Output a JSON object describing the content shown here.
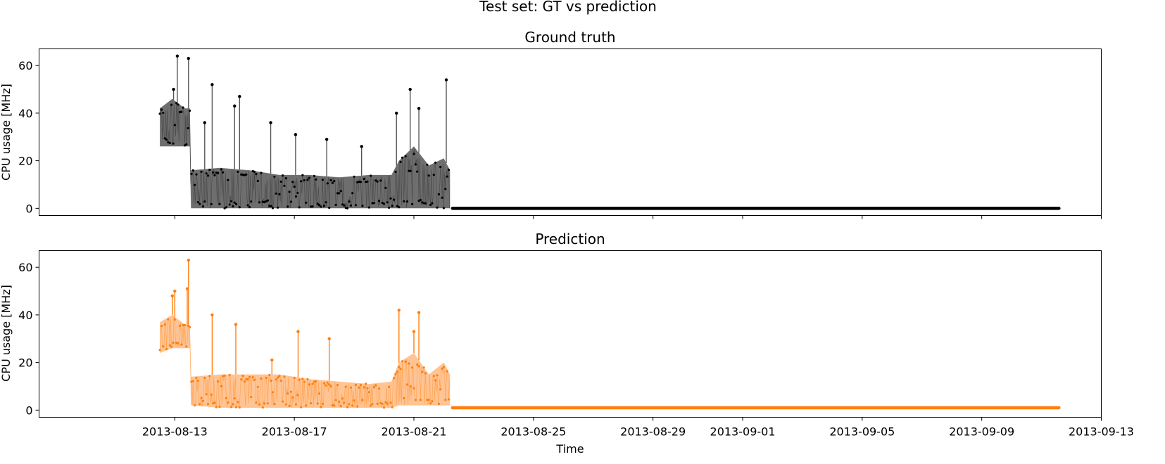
{
  "figure": {
    "suptitle": "Test set: GT vs prediction",
    "xlabel": "Time"
  },
  "chart_data": [
    {
      "type": "line",
      "title": "Ground truth",
      "ylabel": "CPU usage [MHz]",
      "xlabel": "",
      "x_type": "date",
      "xlim": [
        "2013-08-08T11:00",
        "2013-09-13T00:00"
      ],
      "ylim": [
        -3,
        67
      ],
      "yticks": [
        0,
        20,
        40,
        60
      ],
      "xticks": [
        "2013-08-13",
        "2013-08-17",
        "2013-08-21",
        "2013-08-25",
        "2013-08-29",
        "2013-09-01",
        "2013-09-05",
        "2013-09-09",
        "2013-09-13"
      ],
      "show_xtick_labels": false,
      "grid": false,
      "color": "#000000",
      "band_color": "#666666",
      "series": [
        {
          "band": [
            {
              "x": "2013-08-12T12:00",
              "low": 26,
              "high": 42
            },
            {
              "x": "2013-08-12T22:00",
              "low": 26,
              "high": 46
            },
            {
              "x": "2013-08-13T08:00",
              "low": 26,
              "high": 42
            },
            {
              "x": "2013-08-13T12:00",
              "low": 26,
              "high": 42
            },
            {
              "x": "2013-08-13T13:00",
              "low": 0,
              "high": 16
            },
            {
              "x": "2013-08-14T12:00",
              "low": 0,
              "high": 17
            },
            {
              "x": "2013-08-15T12:00",
              "low": 0,
              "high": 16
            },
            {
              "x": "2013-08-16T12:00",
              "low": 0,
              "high": 14
            },
            {
              "x": "2013-08-17T12:00",
              "low": 0,
              "high": 14
            },
            {
              "x": "2013-08-18T12:00",
              "low": 0,
              "high": 13
            },
            {
              "x": "2013-08-19T12:00",
              "low": 0,
              "high": 14
            },
            {
              "x": "2013-08-20T06:00",
              "low": 0,
              "high": 14
            },
            {
              "x": "2013-08-20T12:00",
              "low": 0,
              "high": 20
            },
            {
              "x": "2013-08-21T00:00",
              "low": 0,
              "high": 26
            },
            {
              "x": "2013-08-21T12:00",
              "low": 0,
              "high": 18
            },
            {
              "x": "2013-08-22T00:00",
              "low": 0,
              "high": 21
            },
            {
              "x": "2013-08-22T05:00",
              "low": 0,
              "high": 16
            }
          ],
          "spikes": [
            {
              "x": "2013-08-12T23:00",
              "value": 50
            },
            {
              "x": "2013-08-13T02:00",
              "value": 64
            },
            {
              "x": "2013-08-13T11:00",
              "value": 63
            },
            {
              "x": "2013-08-14T06:00",
              "value": 52
            },
            {
              "x": "2013-08-14T00:00",
              "value": 36
            },
            {
              "x": "2013-08-15T00:00",
              "value": 43
            },
            {
              "x": "2013-08-15T04:00",
              "value": 47
            },
            {
              "x": "2013-08-16T05:00",
              "value": 36
            },
            {
              "x": "2013-08-17T01:00",
              "value": 31
            },
            {
              "x": "2013-08-18T02:00",
              "value": 29
            },
            {
              "x": "2013-08-19T06:00",
              "value": 26
            },
            {
              "x": "2013-08-20T10:00",
              "value": 40
            },
            {
              "x": "2013-08-20T21:00",
              "value": 50
            },
            {
              "x": "2013-08-21T04:00",
              "value": 42
            },
            {
              "x": "2013-08-22T02:00",
              "value": 54
            }
          ],
          "tail": {
            "x_start": "2013-08-22T07:00",
            "x_end": "2013-09-11T14:00",
            "value": 0
          }
        }
      ]
    },
    {
      "type": "line",
      "title": "Prediction",
      "ylabel": "CPU usage [MHz]",
      "xlabel": "Time",
      "x_type": "date",
      "xlim": [
        "2013-08-08T11:00",
        "2013-09-13T00:00"
      ],
      "ylim": [
        -3,
        67
      ],
      "yticks": [
        0,
        20,
        40,
        60
      ],
      "xticks": [
        "2013-08-13",
        "2013-08-17",
        "2013-08-21",
        "2013-08-25",
        "2013-08-29",
        "2013-09-01",
        "2013-09-05",
        "2013-09-09",
        "2013-09-13"
      ],
      "show_xtick_labels": true,
      "grid": false,
      "color": "#ff7f0e",
      "band_color": "#ffb070",
      "series": [
        {
          "band": [
            {
              "x": "2013-08-12T12:00",
              "low": 24,
              "high": 37
            },
            {
              "x": "2013-08-12T22:00",
              "low": 26,
              "high": 40
            },
            {
              "x": "2013-08-13T08:00",
              "low": 26,
              "high": 36
            },
            {
              "x": "2013-08-13T12:00",
              "low": 26,
              "high": 36
            },
            {
              "x": "2013-08-13T13:00",
              "low": 2,
              "high": 14
            },
            {
              "x": "2013-08-14T12:00",
              "low": 1,
              "high": 15
            },
            {
              "x": "2013-08-15T12:00",
              "low": 1,
              "high": 15
            },
            {
              "x": "2013-08-16T12:00",
              "low": 1,
              "high": 15
            },
            {
              "x": "2013-08-17T12:00",
              "low": 1,
              "high": 13
            },
            {
              "x": "2013-08-18T12:00",
              "low": 1,
              "high": 12
            },
            {
              "x": "2013-08-19T12:00",
              "low": 1,
              "high": 11
            },
            {
              "x": "2013-08-20T06:00",
              "low": 1,
              "high": 12
            },
            {
              "x": "2013-08-20T12:00",
              "low": 2,
              "high": 20
            },
            {
              "x": "2013-08-21T00:00",
              "low": 2,
              "high": 24
            },
            {
              "x": "2013-08-21T12:00",
              "low": 2,
              "high": 15
            },
            {
              "x": "2013-08-22T00:00",
              "low": 2,
              "high": 20
            },
            {
              "x": "2013-08-22T05:00",
              "low": 2,
              "high": 15
            }
          ],
          "spikes": [
            {
              "x": "2013-08-12T22:00",
              "value": 48
            },
            {
              "x": "2013-08-13T00:00",
              "value": 50
            },
            {
              "x": "2013-08-13T11:00",
              "value": 63
            },
            {
              "x": "2013-08-13T10:00",
              "value": 51
            },
            {
              "x": "2013-08-14T06:00",
              "value": 40
            },
            {
              "x": "2013-08-15T01:00",
              "value": 36
            },
            {
              "x": "2013-08-16T06:00",
              "value": 21
            },
            {
              "x": "2013-08-17T03:00",
              "value": 33
            },
            {
              "x": "2013-08-18T04:00",
              "value": 30
            },
            {
              "x": "2013-08-20T12:00",
              "value": 42
            },
            {
              "x": "2013-08-21T00:00",
              "value": 33
            },
            {
              "x": "2013-08-21T04:00",
              "value": 41
            }
          ],
          "tail": {
            "x_start": "2013-08-22T07:00",
            "x_end": "2013-09-11T14:00",
            "value": 1
          }
        }
      ]
    }
  ]
}
